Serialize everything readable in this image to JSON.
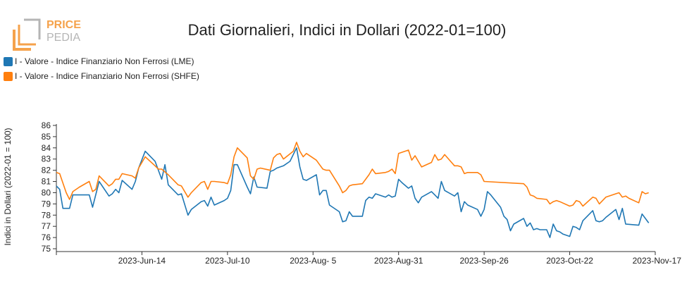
{
  "brand": {
    "logo_line1": "PRICE",
    "logo_line2": "PEDIA",
    "logo_color": "#f5a24b",
    "logo_gray": "#9a9a9a"
  },
  "chart_data": {
    "type": "line",
    "title": "Dati Giornalieri, Indici in Dollari (2022-01=100)",
    "ylabel": "Indici in Dollari (2022-01 = 100)",
    "ylim": [
      75,
      86
    ],
    "yticks": [
      75,
      76,
      77,
      78,
      79,
      80,
      81,
      82,
      83,
      84,
      85,
      86
    ],
    "x_range": [
      "2023-05-19",
      "2023-11-17"
    ],
    "x_ticks": [
      {
        "date": "2023-06-14",
        "label": "2023-Jun-14"
      },
      {
        "date": "2023-07-10",
        "label": "2023-Jul-10"
      },
      {
        "date": "2023-08-05",
        "label": "2023-Aug- 5"
      },
      {
        "date": "2023-08-31",
        "label": "2023-Aug-31"
      },
      {
        "date": "2023-09-26",
        "label": "2023-Sep-26"
      },
      {
        "date": "2023-10-22",
        "label": "2023-Oct-22"
      },
      {
        "date": "2023-11-17",
        "label": "2023-Nov-17"
      }
    ],
    "grid": false,
    "legend_position": "top-left",
    "series": [
      {
        "name": "I - Valore - Indice Finanziario Non Ferrosi (LME)",
        "color": "#1f77b4",
        "points": [
          [
            "2023-05-19",
            80.6
          ],
          [
            "2023-05-20",
            80.3
          ],
          [
            "2023-05-21",
            78.6
          ],
          [
            "2023-05-23",
            78.6
          ],
          [
            "2023-05-24",
            79.8
          ],
          [
            "2023-05-28",
            79.8
          ],
          [
            "2023-05-29",
            79.8
          ],
          [
            "2023-05-30",
            78.7
          ],
          [
            "2023-06-01",
            81.0
          ],
          [
            "2023-06-04",
            79.7
          ],
          [
            "2023-06-05",
            79.9
          ],
          [
            "2023-06-06",
            80.3
          ],
          [
            "2023-06-07",
            80.0
          ],
          [
            "2023-06-08",
            81.1
          ],
          [
            "2023-06-11",
            80.3
          ],
          [
            "2023-06-12",
            81.0
          ],
          [
            "2023-06-13",
            82.2
          ],
          [
            "2023-06-15",
            83.7
          ],
          [
            "2023-06-18",
            82.8
          ],
          [
            "2023-06-20",
            81.2
          ],
          [
            "2023-06-21",
            82.5
          ],
          [
            "2023-06-22",
            80.7
          ],
          [
            "2023-06-25",
            79.8
          ],
          [
            "2023-06-26",
            79.9
          ],
          [
            "2023-06-28",
            78.0
          ],
          [
            "2023-06-29",
            78.5
          ],
          [
            "2023-07-02",
            79.2
          ],
          [
            "2023-07-03",
            79.3
          ],
          [
            "2023-07-04",
            78.8
          ],
          [
            "2023-07-05",
            79.6
          ],
          [
            "2023-07-06",
            78.9
          ],
          [
            "2023-07-09",
            79.3
          ],
          [
            "2023-07-10",
            79.5
          ],
          [
            "2023-07-11",
            80.2
          ],
          [
            "2023-07-12",
            82.5
          ],
          [
            "2023-07-13",
            82.5
          ],
          [
            "2023-07-16",
            80.5
          ],
          [
            "2023-07-17",
            79.9
          ],
          [
            "2023-07-18",
            81.4
          ],
          [
            "2023-07-19",
            80.5
          ],
          [
            "2023-07-22",
            80.4
          ],
          [
            "2023-07-23",
            81.9
          ],
          [
            "2023-07-24",
            82.0
          ],
          [
            "2023-07-25",
            82.2
          ],
          [
            "2023-07-27",
            82.4
          ],
          [
            "2023-07-29",
            82.8
          ],
          [
            "2023-07-31",
            84.0
          ],
          [
            "2023-08-01",
            82.3
          ],
          [
            "2023-08-02",
            81.2
          ],
          [
            "2023-08-03",
            81.1
          ],
          [
            "2023-08-06",
            81.6
          ],
          [
            "2023-08-07",
            79.8
          ],
          [
            "2023-08-08",
            80.2
          ],
          [
            "2023-08-09",
            80.2
          ],
          [
            "2023-08-10",
            78.9
          ],
          [
            "2023-08-13",
            78.3
          ],
          [
            "2023-08-14",
            77.4
          ],
          [
            "2023-08-15",
            77.5
          ],
          [
            "2023-08-16",
            78.3
          ],
          [
            "2023-08-17",
            77.9
          ],
          [
            "2023-08-20",
            77.9
          ],
          [
            "2023-08-21",
            79.3
          ],
          [
            "2023-08-22",
            79.6
          ],
          [
            "2023-08-23",
            79.5
          ],
          [
            "2023-08-24",
            79.9
          ],
          [
            "2023-08-27",
            79.6
          ],
          [
            "2023-08-28",
            79.8
          ],
          [
            "2023-08-29",
            79.6
          ],
          [
            "2023-08-30",
            79.7
          ],
          [
            "2023-08-31",
            81.2
          ],
          [
            "2023-09-01",
            80.9
          ],
          [
            "2023-09-03",
            80.4
          ],
          [
            "2023-09-04",
            80.6
          ],
          [
            "2023-09-05",
            79.5
          ],
          [
            "2023-09-06",
            79.1
          ],
          [
            "2023-09-07",
            79.6
          ],
          [
            "2023-09-10",
            80.1
          ],
          [
            "2023-09-11",
            79.8
          ],
          [
            "2023-09-12",
            79.5
          ],
          [
            "2023-09-13",
            81.0
          ],
          [
            "2023-09-14",
            80.2
          ],
          [
            "2023-09-17",
            79.7
          ],
          [
            "2023-09-18",
            80.0
          ],
          [
            "2023-09-19",
            78.3
          ],
          [
            "2023-09-20",
            79.2
          ],
          [
            "2023-09-21",
            78.9
          ],
          [
            "2023-09-24",
            78.5
          ],
          [
            "2023-09-25",
            77.9
          ],
          [
            "2023-09-26",
            78.5
          ],
          [
            "2023-09-27",
            80.1
          ],
          [
            "2023-09-28",
            79.8
          ],
          [
            "2023-10-01",
            78.7
          ],
          [
            "2023-10-02",
            77.9
          ],
          [
            "2023-10-03",
            77.6
          ],
          [
            "2023-10-04",
            76.6
          ],
          [
            "2023-10-05",
            77.2
          ],
          [
            "2023-10-08",
            77.7
          ],
          [
            "2023-10-09",
            77.0
          ],
          [
            "2023-10-10",
            77.3
          ],
          [
            "2023-10-11",
            76.7
          ],
          [
            "2023-10-12",
            76.8
          ],
          [
            "2023-10-13",
            76.7
          ],
          [
            "2023-10-15",
            76.7
          ],
          [
            "2023-10-16",
            76.0
          ],
          [
            "2023-10-17",
            77.2
          ],
          [
            "2023-10-18",
            76.6
          ],
          [
            "2023-10-19",
            76.5
          ],
          [
            "2023-10-20",
            76.3
          ],
          [
            "2023-10-22",
            76.1
          ],
          [
            "2023-10-23",
            77.0
          ],
          [
            "2023-10-24",
            76.9
          ],
          [
            "2023-10-25",
            76.7
          ],
          [
            "2023-10-26",
            77.5
          ],
          [
            "2023-10-29",
            78.4
          ],
          [
            "2023-10-30",
            77.5
          ],
          [
            "2023-10-31",
            77.4
          ],
          [
            "2023-11-01",
            77.5
          ],
          [
            "2023-11-02",
            77.8
          ],
          [
            "2023-11-05",
            78.5
          ],
          [
            "2023-11-06",
            77.6
          ],
          [
            "2023-11-07",
            78.6
          ],
          [
            "2023-11-08",
            77.2
          ],
          [
            "2023-11-12",
            77.1
          ],
          [
            "2023-11-13",
            78.1
          ],
          [
            "2023-11-14",
            77.7
          ],
          [
            "2023-11-15",
            77.3
          ]
        ]
      },
      {
        "name": "I - Valore - Indice Finanziario Non Ferrosi (SHFE)",
        "color": "#ff7f0e",
        "points": [
          [
            "2023-05-19",
            81.8
          ],
          [
            "2023-05-20",
            81.7
          ],
          [
            "2023-05-22",
            80.0
          ],
          [
            "2023-05-23",
            79.4
          ],
          [
            "2023-05-24",
            80.1
          ],
          [
            "2023-05-26",
            80.5
          ],
          [
            "2023-05-29",
            81.0
          ],
          [
            "2023-05-30",
            80.1
          ],
          [
            "2023-05-31",
            80.3
          ],
          [
            "2023-06-01",
            81.5
          ],
          [
            "2023-06-04",
            80.6
          ],
          [
            "2023-06-05",
            80.8
          ],
          [
            "2023-06-06",
            81.2
          ],
          [
            "2023-06-07",
            81.2
          ],
          [
            "2023-06-08",
            81.7
          ],
          [
            "2023-06-11",
            81.5
          ],
          [
            "2023-06-12",
            81.3
          ],
          [
            "2023-06-13",
            82.2
          ],
          [
            "2023-06-15",
            83.2
          ],
          [
            "2023-06-18",
            82.4
          ],
          [
            "2023-06-19",
            82.1
          ],
          [
            "2023-06-20",
            82.1
          ],
          [
            "2023-06-22",
            81.6
          ],
          [
            "2023-06-25",
            80.7
          ],
          [
            "2023-06-26",
            80.6
          ],
          [
            "2023-06-28",
            79.6
          ],
          [
            "2023-06-29",
            80.0
          ],
          [
            "2023-07-02",
            80.9
          ],
          [
            "2023-07-03",
            81.0
          ],
          [
            "2023-07-04",
            80.3
          ],
          [
            "2023-07-05",
            81.0
          ],
          [
            "2023-07-06",
            81.0
          ],
          [
            "2023-07-09",
            80.9
          ],
          [
            "2023-07-10",
            80.8
          ],
          [
            "2023-07-11",
            81.6
          ],
          [
            "2023-07-12",
            83.2
          ],
          [
            "2023-07-13",
            84.0
          ],
          [
            "2023-07-16",
            83.1
          ],
          [
            "2023-07-17",
            81.5
          ],
          [
            "2023-07-18",
            81.2
          ],
          [
            "2023-07-19",
            82.1
          ],
          [
            "2023-07-20",
            82.2
          ],
          [
            "2023-07-23",
            82.0
          ],
          [
            "2023-07-24",
            83.1
          ],
          [
            "2023-07-25",
            83.4
          ],
          [
            "2023-07-26",
            83.5
          ],
          [
            "2023-07-27",
            83.0
          ],
          [
            "2023-07-30",
            83.7
          ],
          [
            "2023-07-31",
            84.5
          ],
          [
            "2023-08-01",
            83.7
          ],
          [
            "2023-08-02",
            83.2
          ],
          [
            "2023-08-03",
            83.5
          ],
          [
            "2023-08-06",
            82.9
          ],
          [
            "2023-08-07",
            82.5
          ],
          [
            "2023-08-08",
            82.1
          ],
          [
            "2023-08-09",
            82.0
          ],
          [
            "2023-08-10",
            82.0
          ],
          [
            "2023-08-13",
            80.6
          ],
          [
            "2023-08-14",
            80.0
          ],
          [
            "2023-08-15",
            80.2
          ],
          [
            "2023-08-16",
            80.6
          ],
          [
            "2023-08-17",
            80.7
          ],
          [
            "2023-08-20",
            80.8
          ],
          [
            "2023-08-21",
            81.2
          ],
          [
            "2023-08-22",
            81.6
          ],
          [
            "2023-08-23",
            82.1
          ],
          [
            "2023-08-24",
            81.7
          ],
          [
            "2023-08-27",
            81.8
          ],
          [
            "2023-08-28",
            81.9
          ],
          [
            "2023-08-29",
            82.1
          ],
          [
            "2023-08-30",
            81.7
          ],
          [
            "2023-08-31",
            83.5
          ],
          [
            "2023-09-03",
            83.8
          ],
          [
            "2023-09-04",
            82.9
          ],
          [
            "2023-09-05",
            83.3
          ],
          [
            "2023-09-06",
            82.8
          ],
          [
            "2023-09-07",
            82.3
          ],
          [
            "2023-09-10",
            82.7
          ],
          [
            "2023-09-11",
            83.4
          ],
          [
            "2023-09-12",
            82.9
          ],
          [
            "2023-09-13",
            83.0
          ],
          [
            "2023-09-14",
            83.4
          ],
          [
            "2023-09-17",
            82.4
          ],
          [
            "2023-09-18",
            82.4
          ],
          [
            "2023-09-19",
            82.3
          ],
          [
            "2023-09-20",
            81.7
          ],
          [
            "2023-09-21",
            81.8
          ],
          [
            "2023-09-24",
            81.8
          ],
          [
            "2023-09-25",
            81.6
          ],
          [
            "2023-09-26",
            81.0
          ],
          [
            "2023-10-08",
            80.8
          ],
          [
            "2023-10-09",
            80.5
          ],
          [
            "2023-10-10",
            79.8
          ],
          [
            "2023-10-11",
            79.7
          ],
          [
            "2023-10-12",
            79.5
          ],
          [
            "2023-10-15",
            79.4
          ],
          [
            "2023-10-16",
            79.0
          ],
          [
            "2023-10-17",
            79.2
          ],
          [
            "2023-10-18",
            79.3
          ],
          [
            "2023-10-19",
            79.2
          ],
          [
            "2023-10-22",
            78.8
          ],
          [
            "2023-10-23",
            78.9
          ],
          [
            "2023-10-24",
            79.3
          ],
          [
            "2023-10-25",
            79.2
          ],
          [
            "2023-10-26",
            78.8
          ],
          [
            "2023-10-29",
            79.6
          ],
          [
            "2023-10-30",
            79.5
          ],
          [
            "2023-10-31",
            79.0
          ],
          [
            "2023-11-01",
            79.3
          ],
          [
            "2023-11-02",
            79.6
          ],
          [
            "2023-11-05",
            79.9
          ],
          [
            "2023-11-06",
            80.0
          ],
          [
            "2023-11-07",
            79.6
          ],
          [
            "2023-11-08",
            79.7
          ],
          [
            "2023-11-09",
            79.5
          ],
          [
            "2023-11-12",
            79.1
          ],
          [
            "2023-11-13",
            80.1
          ],
          [
            "2023-11-14",
            79.9
          ],
          [
            "2023-11-15",
            80.0
          ]
        ]
      }
    ]
  }
}
